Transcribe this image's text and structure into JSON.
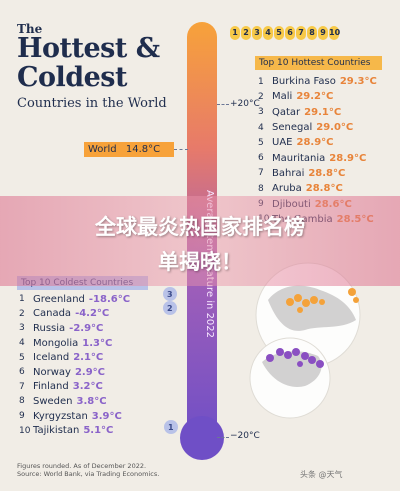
{
  "header": {
    "title_small": "The",
    "title_line1": "Hottest &",
    "title_line2": "Coldest",
    "subtitle": "Countries in the World"
  },
  "rank_markers": [
    "1",
    "2",
    "3",
    "4",
    "5",
    "6",
    "7",
    "8",
    "9",
    "10"
  ],
  "axis": {
    "label": "Average temperature in 2022",
    "top_tick": "+20°C",
    "bottom_tick": "−20°C"
  },
  "world": {
    "label": "World",
    "value": "14.8°C"
  },
  "banner": {
    "line1": "全球最炎热国家排名榜",
    "line2": "单揭晓！"
  },
  "footnote": {
    "line1": "Figures rounded. As of December 2022.",
    "line2": "Source: World Bank, via Trading Economics."
  },
  "watermark": "头条 @天气",
  "colors": {
    "hot": "#e8843a",
    "cold": "#8a63c9",
    "tube": "#7b56c8",
    "marker": "#f7c948",
    "banner": "#dc6e8c"
  },
  "chart_data": {
    "type": "table",
    "title": "The Hottest & Coldest Countries in the World",
    "hottest": {
      "header": "Top 10 Hottest Countries",
      "rows": [
        {
          "rank": "1",
          "country": "Burkina Faso",
          "temp": "29.3°C",
          "value": 29.3
        },
        {
          "rank": "2",
          "country": "Mali",
          "temp": "29.2°C",
          "value": 29.2
        },
        {
          "rank": "3",
          "country": "Qatar",
          "temp": "29.1°C",
          "value": 29.1
        },
        {
          "rank": "4",
          "country": "Senegal",
          "temp": "29.0°C",
          "value": 29.0
        },
        {
          "rank": "5",
          "country": "UAE",
          "temp": "28.9°C",
          "value": 28.9
        },
        {
          "rank": "6",
          "country": "Mauritania",
          "temp": "28.9°C",
          "value": 28.9
        },
        {
          "rank": "7",
          "country": "Bahrai",
          "temp": "28.8°C",
          "value": 28.8
        },
        {
          "rank": "8",
          "country": "Aruba",
          "temp": "28.8°C",
          "value": 28.8
        },
        {
          "rank": "9",
          "country": "Djibouti",
          "temp": "28.6°C",
          "value": 28.6
        },
        {
          "rank": "10",
          "country": "The Gambia",
          "temp": "28.5°C",
          "value": 28.5
        }
      ]
    },
    "coldest": {
      "header": "Top 10 Coldest Countries",
      "rows": [
        {
          "rank": "1",
          "country": "Greenland",
          "temp": "-18.6°C",
          "value": -18.6
        },
        {
          "rank": "2",
          "country": "Canada",
          "temp": "-4.2°C",
          "value": -4.2
        },
        {
          "rank": "3",
          "country": "Russia",
          "temp": "-2.9°C",
          "value": -2.9
        },
        {
          "rank": "4",
          "country": "Mongolia",
          "temp": "1.3°C",
          "value": 1.3
        },
        {
          "rank": "5",
          "country": "Iceland",
          "temp": "2.1°C",
          "value": 2.1
        },
        {
          "rank": "6",
          "country": "Norway",
          "temp": "2.9°C",
          "value": 2.9
        },
        {
          "rank": "7",
          "country": "Finland",
          "temp": "3.2°C",
          "value": 3.2
        },
        {
          "rank": "8",
          "country": "Sweden",
          "temp": "3.8°C",
          "value": 3.8
        },
        {
          "rank": "9",
          "country": "Kyrgyzstan",
          "temp": "3.9°C",
          "value": 3.9
        },
        {
          "rank": "10",
          "country": "Tajikistan",
          "temp": "5.1°C",
          "value": 5.1
        }
      ]
    },
    "world_average": 14.8,
    "ylim": [
      -20,
      30
    ]
  }
}
